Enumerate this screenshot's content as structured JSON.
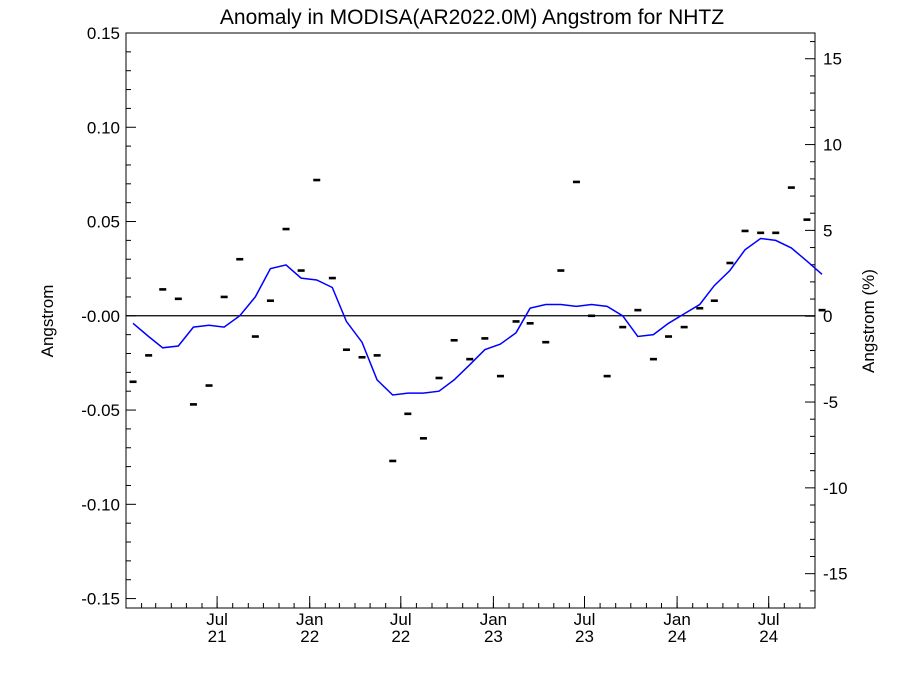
{
  "chart_data": {
    "type": "line",
    "title": "Anomaly in MODISA(AR2022.0M) Angstrom for NHTZ",
    "ylabel": "Angstrom",
    "y2label": "Angstrom (%)",
    "ylim": [
      -0.155,
      0.15
    ],
    "y2lim": [
      -17,
      16.5
    ],
    "xlim": [
      "2021-01-01",
      "2024-10-01"
    ],
    "grid": false,
    "yticks": [
      {
        "value": 0.15,
        "label": "0.15"
      },
      {
        "value": 0.1,
        "label": "0.10"
      },
      {
        "value": 0.05,
        "label": "0.05"
      },
      {
        "value": 0.0,
        "label": "-0.00"
      },
      {
        "value": -0.05,
        "label": "-0.05"
      },
      {
        "value": -0.1,
        "label": "-0.10"
      },
      {
        "value": -0.15,
        "label": "-0.15"
      }
    ],
    "y2ticks": [
      {
        "value": 15,
        "label": "15"
      },
      {
        "value": 10,
        "label": "10"
      },
      {
        "value": 5,
        "label": "5"
      },
      {
        "value": 0,
        "label": "0"
      },
      {
        "value": -5,
        "label": "-5"
      },
      {
        "value": -10,
        "label": "-10"
      },
      {
        "value": -15,
        "label": "-15"
      }
    ],
    "xticks": [
      {
        "date": "2021-07-01",
        "label1": "Jul",
        "label2": "21"
      },
      {
        "date": "2022-01-01",
        "label1": "Jan",
        "label2": "22"
      },
      {
        "date": "2022-07-01",
        "label1": "Jul",
        "label2": "22"
      },
      {
        "date": "2023-01-01",
        "label1": "Jan",
        "label2": "23"
      },
      {
        "date": "2023-07-01",
        "label1": "Jul",
        "label2": "23"
      },
      {
        "date": "2024-01-01",
        "label1": "Jan",
        "label2": "24"
      },
      {
        "date": "2024-07-01",
        "label1": "Jul",
        "label2": "24"
      }
    ],
    "zero_line": 0,
    "series": [
      {
        "kind": "markers",
        "color": "#000000",
        "points": [
          {
            "x": "2021-01",
            "y": -0.035
          },
          {
            "x": "2021-02",
            "y": -0.021
          },
          {
            "x": "2021-03",
            "y": 0.014
          },
          {
            "x": "2021-04",
            "y": 0.009
          },
          {
            "x": "2021-05",
            "y": -0.047
          },
          {
            "x": "2021-06",
            "y": -0.037
          },
          {
            "x": "2021-07",
            "y": 0.01
          },
          {
            "x": "2021-08",
            "y": 0.03
          },
          {
            "x": "2021-09",
            "y": -0.011
          },
          {
            "x": "2021-10",
            "y": 0.008
          },
          {
            "x": "2021-11",
            "y": 0.046
          },
          {
            "x": "2021-12",
            "y": 0.024
          },
          {
            "x": "2022-01",
            "y": 0.072
          },
          {
            "x": "2022-02",
            "y": 0.02
          },
          {
            "x": "2022-03",
            "y": -0.018
          },
          {
            "x": "2022-04",
            "y": -0.022
          },
          {
            "x": "2022-05",
            "y": -0.021
          },
          {
            "x": "2022-06",
            "y": -0.077
          },
          {
            "x": "2022-07",
            "y": -0.052
          },
          {
            "x": "2022-08",
            "y": -0.065
          },
          {
            "x": "2022-09",
            "y": -0.033
          },
          {
            "x": "2022-10",
            "y": -0.013
          },
          {
            "x": "2022-11",
            "y": -0.023
          },
          {
            "x": "2022-12",
            "y": -0.012
          },
          {
            "x": "2023-01",
            "y": -0.032
          },
          {
            "x": "2023-02",
            "y": -0.003
          },
          {
            "x": "2023-03",
            "y": -0.004
          },
          {
            "x": "2023-04",
            "y": -0.014
          },
          {
            "x": "2023-05",
            "y": 0.024
          },
          {
            "x": "2023-06",
            "y": 0.071
          },
          {
            "x": "2023-07",
            "y": 0.0
          },
          {
            "x": "2023-08",
            "y": -0.032
          },
          {
            "x": "2023-09",
            "y": -0.006
          },
          {
            "x": "2023-10",
            "y": 0.003
          },
          {
            "x": "2023-11",
            "y": -0.023
          },
          {
            "x": "2023-12",
            "y": -0.011
          },
          {
            "x": "2024-01",
            "y": -0.006
          },
          {
            "x": "2024-02",
            "y": 0.004
          },
          {
            "x": "2024-03",
            "y": 0.008
          },
          {
            "x": "2024-04",
            "y": 0.028
          },
          {
            "x": "2024-05",
            "y": 0.045
          },
          {
            "x": "2024-06",
            "y": 0.044
          },
          {
            "x": "2024-07",
            "y": 0.044
          },
          {
            "x": "2024-08",
            "y": 0.068
          },
          {
            "x": "2024-09",
            "y": 0.051
          },
          {
            "x": "2024-10",
            "y": 0.003
          }
        ]
      },
      {
        "kind": "line",
        "color": "#0000ff",
        "points": [
          {
            "x": "2021-01",
            "y": -0.004
          },
          {
            "x": "2021-02",
            "y": -0.011
          },
          {
            "x": "2021-03",
            "y": -0.017
          },
          {
            "x": "2021-04",
            "y": -0.016
          },
          {
            "x": "2021-05",
            "y": -0.006
          },
          {
            "x": "2021-06",
            "y": -0.005
          },
          {
            "x": "2021-07",
            "y": -0.006
          },
          {
            "x": "2021-08",
            "y": 0.0
          },
          {
            "x": "2021-09",
            "y": 0.01
          },
          {
            "x": "2021-10",
            "y": 0.025
          },
          {
            "x": "2021-11",
            "y": 0.027
          },
          {
            "x": "2021-12",
            "y": 0.02
          },
          {
            "x": "2022-01",
            "y": 0.019
          },
          {
            "x": "2022-02",
            "y": 0.015
          },
          {
            "x": "2022-03",
            "y": -0.003
          },
          {
            "x": "2022-04",
            "y": -0.014
          },
          {
            "x": "2022-05",
            "y": -0.034
          },
          {
            "x": "2022-06",
            "y": -0.042
          },
          {
            "x": "2022-07",
            "y": -0.041
          },
          {
            "x": "2022-08",
            "y": -0.041
          },
          {
            "x": "2022-09",
            "y": -0.04
          },
          {
            "x": "2022-10",
            "y": -0.034
          },
          {
            "x": "2022-11",
            "y": -0.026
          },
          {
            "x": "2022-12",
            "y": -0.018
          },
          {
            "x": "2023-01",
            "y": -0.015
          },
          {
            "x": "2023-02",
            "y": -0.009
          },
          {
            "x": "2023-03",
            "y": 0.004
          },
          {
            "x": "2023-04",
            "y": 0.006
          },
          {
            "x": "2023-05",
            "y": 0.006
          },
          {
            "x": "2023-06",
            "y": 0.005
          },
          {
            "x": "2023-07",
            "y": 0.006
          },
          {
            "x": "2023-08",
            "y": 0.005
          },
          {
            "x": "2023-09",
            "y": 0.0
          },
          {
            "x": "2023-10",
            "y": -0.011
          },
          {
            "x": "2023-11",
            "y": -0.01
          },
          {
            "x": "2023-12",
            "y": -0.004
          },
          {
            "x": "2024-01",
            "y": 0.001
          },
          {
            "x": "2024-02",
            "y": 0.006
          },
          {
            "x": "2024-03",
            "y": 0.016
          },
          {
            "x": "2024-04",
            "y": 0.024
          },
          {
            "x": "2024-05",
            "y": 0.035
          },
          {
            "x": "2024-06",
            "y": 0.041
          },
          {
            "x": "2024-07",
            "y": 0.04
          },
          {
            "x": "2024-08",
            "y": 0.036
          },
          {
            "x": "2024-09",
            "y": 0.029
          },
          {
            "x": "2024-10",
            "y": 0.022
          }
        ]
      }
    ]
  }
}
